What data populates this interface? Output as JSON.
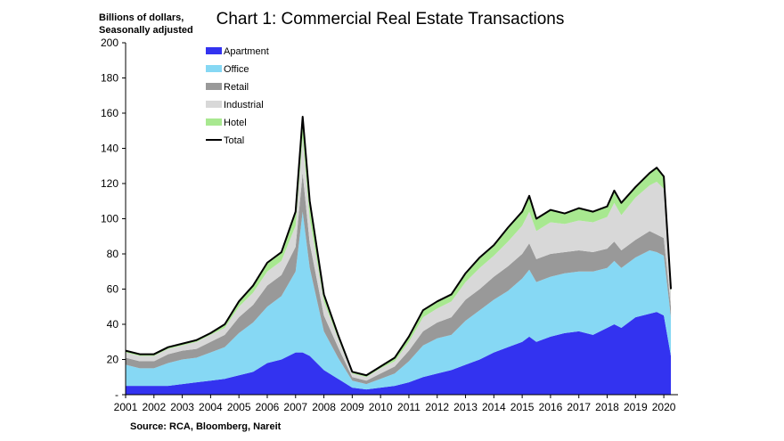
{
  "chart_data": {
    "type": "area",
    "stacked": true,
    "title": "Chart 1: Commercial Real Estate Transactions",
    "ylabel": "Billions of dollars, Seasonally adjusted",
    "ylabel_lines": [
      "Billions of dollars,",
      "Seasonally adjusted"
    ],
    "source": "Source: RCA, Bloomberg, Nareit",
    "xlim": [
      2001,
      2020.5
    ],
    "ylim": [
      0,
      200
    ],
    "y_ticks": [
      0,
      20,
      40,
      60,
      80,
      100,
      120,
      140,
      160,
      180,
      200
    ],
    "y_tick_labels": [
      "-",
      "20",
      "40",
      "60",
      "80",
      "100",
      "120",
      "140",
      "160",
      "180",
      "200"
    ],
    "x_ticks": [
      "2001",
      "2002",
      "2003",
      "2004",
      "2005",
      "2006",
      "2007",
      "2008",
      "2009",
      "2010",
      "2011",
      "2012",
      "2013",
      "2014",
      "2015",
      "2016",
      "2017",
      "2018",
      "2019",
      "2020"
    ],
    "grid": false,
    "legend_position": "top-left",
    "x": [
      2001.0,
      2001.5,
      2002.0,
      2002.5,
      2003.0,
      2003.5,
      2004.0,
      2004.5,
      2005.0,
      2005.5,
      2006.0,
      2006.5,
      2007.0,
      2007.25,
      2007.5,
      2008.0,
      2008.5,
      2009.0,
      2009.5,
      2010.0,
      2010.5,
      2011.0,
      2011.5,
      2012.0,
      2012.5,
      2013.0,
      2013.5,
      2014.0,
      2014.5,
      2015.0,
      2015.25,
      2015.5,
      2016.0,
      2016.5,
      2017.0,
      2017.5,
      2018.0,
      2018.25,
      2018.5,
      2019.0,
      2019.5,
      2019.75,
      2020.0,
      2020.25
    ],
    "series": [
      {
        "name": "Apartment",
        "color": "#3333f0",
        "values": [
          5,
          5,
          5,
          5,
          6,
          7,
          8,
          9,
          11,
          13,
          18,
          20,
          24,
          24,
          22,
          14,
          9,
          4,
          3,
          4,
          5,
          7,
          10,
          12,
          14,
          17,
          20,
          24,
          27,
          30,
          33,
          30,
          33,
          35,
          36,
          34,
          38,
          40,
          38,
          44,
          46,
          47,
          45,
          22
        ]
      },
      {
        "name": "Office",
        "color": "#86d8f4",
        "values": [
          12,
          10,
          10,
          13,
          14,
          14,
          16,
          18,
          24,
          28,
          32,
          36,
          46,
          80,
          50,
          22,
          12,
          4,
          3,
          5,
          7,
          12,
          18,
          20,
          20,
          25,
          28,
          30,
          32,
          36,
          38,
          34,
          34,
          34,
          34,
          36,
          34,
          36,
          34,
          34,
          36,
          34,
          34,
          22
        ]
      },
      {
        "name": "Retail",
        "color": "#999999",
        "values": [
          4,
          4,
          4,
          5,
          5,
          5,
          6,
          7,
          9,
          10,
          12,
          12,
          14,
          22,
          14,
          9,
          6,
          2,
          2,
          3,
          4,
          6,
          8,
          9,
          10,
          12,
          12,
          13,
          14,
          14,
          15,
          13,
          13,
          12,
          12,
          11,
          11,
          11,
          10,
          10,
          11,
          10,
          10,
          6
        ]
      },
      {
        "name": "Industrial",
        "color": "#d8d8d8",
        "values": [
          3,
          3,
          3,
          3,
          3,
          4,
          4,
          4,
          6,
          7,
          8,
          8,
          12,
          20,
          14,
          8,
          5,
          2,
          2,
          3,
          3,
          5,
          8,
          8,
          9,
          10,
          12,
          12,
          14,
          16,
          18,
          16,
          18,
          16,
          17,
          17,
          18,
          22,
          20,
          24,
          26,
          30,
          28,
          8
        ]
      },
      {
        "name": "Hotel",
        "color": "#a8e890",
        "values": [
          1,
          1,
          1,
          1,
          1,
          1,
          1,
          2,
          3,
          4,
          5,
          5,
          8,
          12,
          10,
          4,
          2,
          1,
          1,
          1,
          2,
          3,
          4,
          4,
          4,
          5,
          6,
          6,
          8,
          8,
          9,
          7,
          7,
          6,
          7,
          6,
          6,
          7,
          7,
          6,
          7,
          8,
          7,
          2
        ]
      }
    ],
    "total": {
      "name": "Total",
      "color": "#000000",
      "values": [
        25,
        23,
        23,
        27,
        29,
        31,
        35,
        40,
        53,
        62,
        75,
        81,
        104,
        158,
        110,
        57,
        34,
        13,
        11,
        16,
        21,
        33,
        48,
        53,
        57,
        69,
        78,
        85,
        95,
        104,
        113,
        100,
        105,
        103,
        106,
        104,
        107,
        116,
        109,
        118,
        126,
        129,
        124,
        60
      ]
    }
  }
}
